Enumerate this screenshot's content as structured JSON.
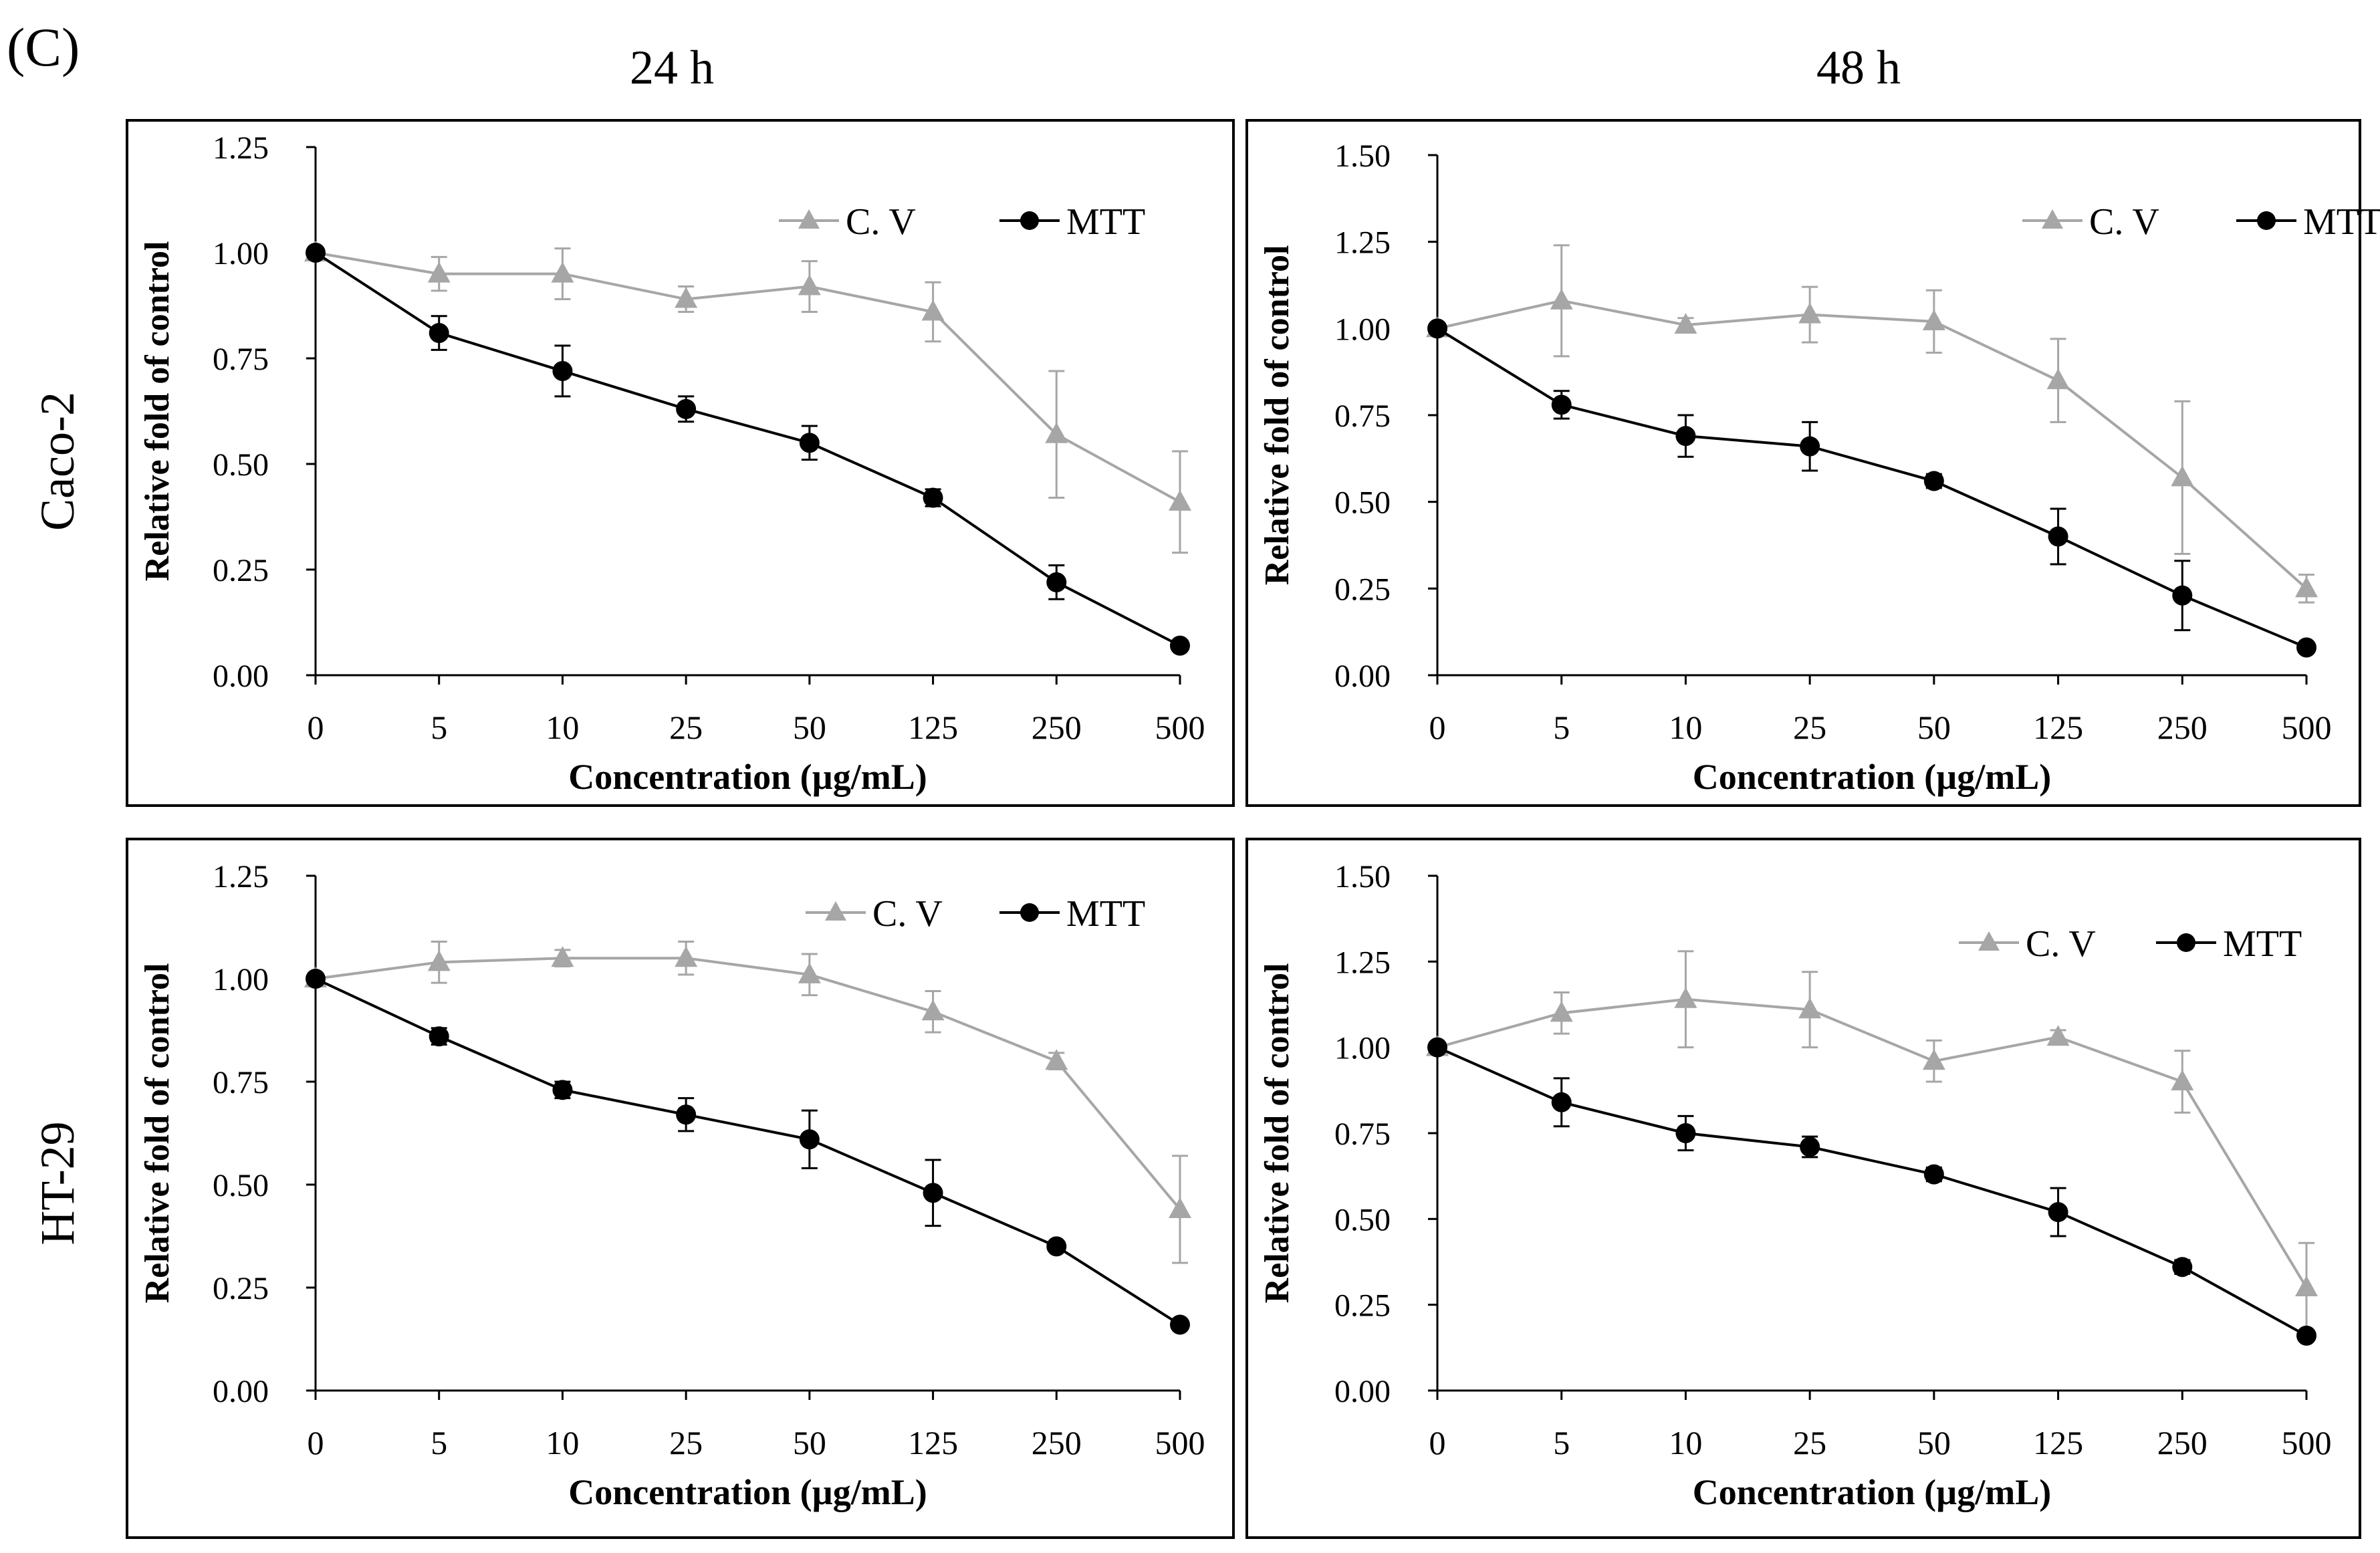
{
  "figure": {
    "panel_label": "(C)",
    "column_headers": [
      "24 h",
      "48 h"
    ],
    "row_headers": [
      "Caco-2",
      "HT-29"
    ]
  },
  "chart_data": [
    {
      "type": "line",
      "cell_line": "Caco-2",
      "time": "24 h",
      "categories": [
        "0",
        "5",
        "10",
        "25",
        "50",
        "125",
        "250",
        "500"
      ],
      "xlabel": "Concentration (µg/mL)",
      "ylabel": "Relative fold of control",
      "ylim": [
        0,
        1.25
      ],
      "yticks": [
        "0.00",
        "0.25",
        "0.50",
        "0.75",
        "1.00",
        "1.25"
      ],
      "legend_position": "top-right",
      "grid": false,
      "series": [
        {
          "name": "C. V",
          "marker": "triangle",
          "color": "#a6a6a6",
          "values": [
            1.0,
            0.95,
            0.95,
            0.89,
            0.92,
            0.86,
            0.57,
            0.41
          ],
          "errors": [
            0.0,
            0.04,
            0.06,
            0.03,
            0.06,
            0.07,
            0.15,
            0.12
          ]
        },
        {
          "name": "MTT",
          "marker": "circle",
          "color": "#000000",
          "values": [
            1.0,
            0.81,
            0.72,
            0.63,
            0.55,
            0.42,
            0.22,
            0.07
          ],
          "errors": [
            0.0,
            0.04,
            0.06,
            0.03,
            0.04,
            0.02,
            0.04,
            0.0
          ]
        }
      ]
    },
    {
      "type": "line",
      "cell_line": "Caco-2",
      "time": "48 h",
      "categories": [
        "0",
        "5",
        "10",
        "25",
        "50",
        "125",
        "250",
        "500"
      ],
      "xlabel": "Concentration (µg/mL)",
      "ylabel": "Relative fold of control",
      "ylim": [
        0,
        1.5
      ],
      "yticks": [
        "0.00",
        "0.25",
        "0.50",
        "0.75",
        "1.00",
        "1.25",
        "1.50"
      ],
      "legend_position": "top-right",
      "grid": false,
      "series": [
        {
          "name": "C. V",
          "marker": "triangle",
          "color": "#a6a6a6",
          "values": [
            1.0,
            1.08,
            1.01,
            1.04,
            1.02,
            0.85,
            0.57,
            0.25
          ],
          "errors": [
            0.0,
            0.16,
            0.02,
            0.08,
            0.09,
            0.12,
            0.22,
            0.04
          ]
        },
        {
          "name": "MTT",
          "marker": "circle",
          "color": "#000000",
          "values": [
            1.0,
            0.78,
            0.69,
            0.66,
            0.56,
            0.4,
            0.23,
            0.08
          ],
          "errors": [
            0.0,
            0.04,
            0.06,
            0.07,
            0.02,
            0.08,
            0.1,
            0.0
          ]
        }
      ]
    },
    {
      "type": "line",
      "cell_line": "HT-29",
      "time": "24 h",
      "categories": [
        "0",
        "5",
        "10",
        "25",
        "50",
        "125",
        "250",
        "500"
      ],
      "xlabel": "Concentration (µg/mL)",
      "ylabel": "Relative fold of control",
      "ylim": [
        0,
        1.25
      ],
      "yticks": [
        "0.00",
        "0.25",
        "0.50",
        "0.75",
        "1.00",
        "1.25"
      ],
      "legend_position": "top-right",
      "grid": false,
      "series": [
        {
          "name": "C. V",
          "marker": "triangle",
          "color": "#a6a6a6",
          "values": [
            1.0,
            1.04,
            1.05,
            1.05,
            1.01,
            0.92,
            0.8,
            0.44
          ],
          "errors": [
            0.0,
            0.05,
            0.02,
            0.04,
            0.05,
            0.05,
            0.02,
            0.13
          ]
        },
        {
          "name": "MTT",
          "marker": "circle",
          "color": "#000000",
          "values": [
            1.0,
            0.86,
            0.73,
            0.67,
            0.61,
            0.48,
            0.35,
            0.16
          ],
          "errors": [
            0.0,
            0.02,
            0.02,
            0.04,
            0.07,
            0.08,
            0.0,
            0.0
          ]
        }
      ]
    },
    {
      "type": "line",
      "cell_line": "HT-29",
      "time": "48 h",
      "categories": [
        "0",
        "5",
        "10",
        "25",
        "50",
        "125",
        "250",
        "500"
      ],
      "xlabel": "Concentration (µg/mL)",
      "ylabel": "Relative fold of control",
      "ylim": [
        0,
        1.5
      ],
      "yticks": [
        "0.00",
        "0.25",
        "0.50",
        "0.75",
        "1.00",
        "1.25",
        "1.50"
      ],
      "legend_position": "top-right",
      "grid": false,
      "series": [
        {
          "name": "C. V",
          "marker": "triangle",
          "color": "#a6a6a6",
          "values": [
            1.0,
            1.1,
            1.14,
            1.11,
            0.96,
            1.03,
            0.9,
            0.3
          ],
          "errors": [
            0.0,
            0.06,
            0.14,
            0.11,
            0.06,
            0.02,
            0.09,
            0.13
          ]
        },
        {
          "name": "MTT",
          "marker": "circle",
          "color": "#000000",
          "values": [
            1.0,
            0.84,
            0.75,
            0.71,
            0.63,
            0.52,
            0.36,
            0.16
          ],
          "errors": [
            0.0,
            0.07,
            0.05,
            0.03,
            0.02,
            0.07,
            0.02,
            0.0
          ]
        }
      ]
    }
  ]
}
